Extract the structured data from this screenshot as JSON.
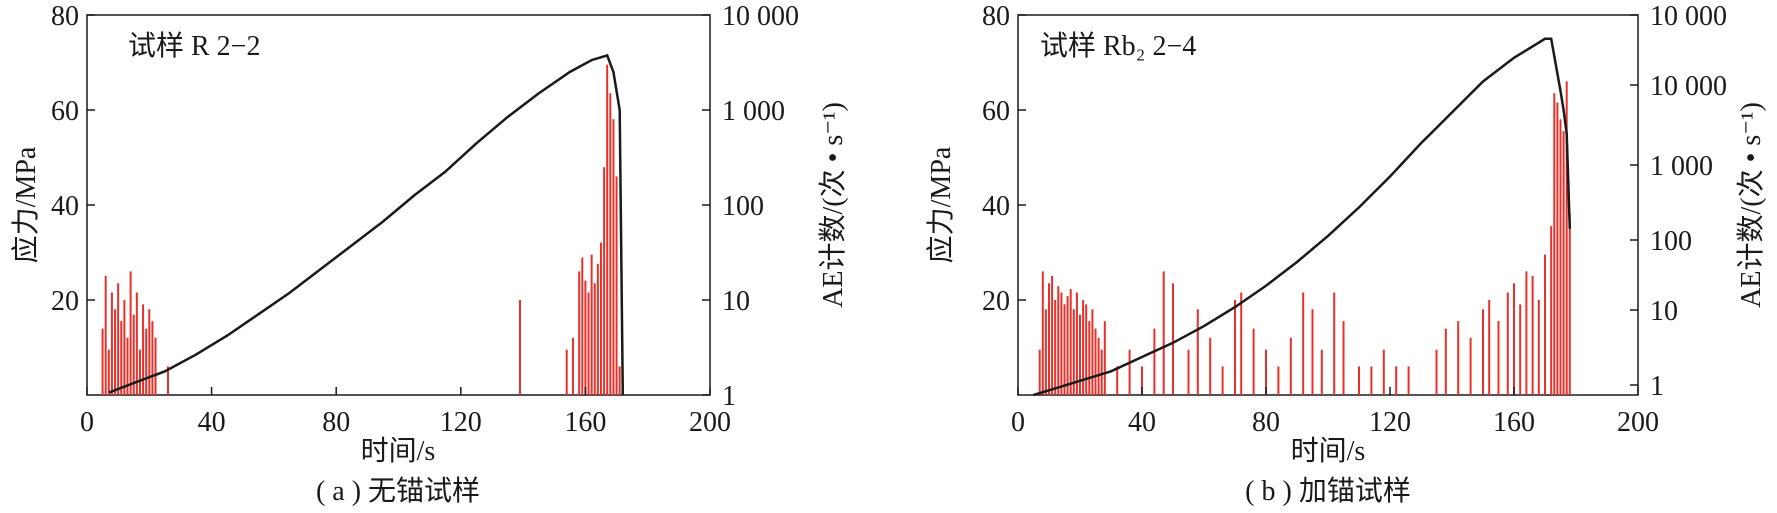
{
  "colors": {
    "stress": "#1a1a1a",
    "ae": "#e8312a",
    "axis": "#1a1a1a"
  },
  "chart_data": [
    {
      "type": "line",
      "panel_title": "( a ) 无锚试样",
      "annotation": "试样 R 2−2",
      "xlabel": "时间/s",
      "ylabel": "应力/MPa",
      "y2label": "AE计数/(次 • s⁻¹)",
      "xlim": [
        0,
        200
      ],
      "ylim": [
        0,
        80
      ],
      "y2lim_log": [
        1,
        10000
      ],
      "xticks": [
        "0",
        "40",
        "80",
        "120",
        "160",
        "200"
      ],
      "yticks": [
        "20",
        "40",
        "60",
        "80"
      ],
      "y2ticks": [
        "1",
        "10",
        "100",
        "1 000",
        "10 000"
      ],
      "series": [
        {
          "kind": "line",
          "axis": "left",
          "x": [
            7,
            15,
            25,
            35,
            45,
            55,
            65,
            75,
            85,
            95,
            105,
            115,
            125,
            135,
            145,
            155,
            162,
            167,
            169,
            171,
            172
          ],
          "y": [
            0.5,
            2.5,
            5,
            8.5,
            12.5,
            17,
            21.5,
            26.5,
            31.5,
            36.5,
            42,
            47,
            53,
            58.5,
            63.5,
            68,
            70.5,
            71.5,
            68,
            60,
            0
          ]
        },
        {
          "kind": "bars",
          "axis": "right",
          "x": [
            5,
            6,
            7,
            8,
            9,
            10,
            11,
            12,
            13,
            14,
            15,
            16,
            17,
            18,
            19,
            20,
            21,
            22,
            26,
            139,
            154,
            156,
            158,
            159,
            160,
            161,
            162,
            163,
            164,
            165,
            166,
            167,
            168,
            169,
            170,
            171
          ],
          "values": [
            5,
            18,
            3,
            12,
            8,
            15,
            6,
            10,
            4,
            20,
            7,
            12,
            3,
            9,
            5,
            8,
            6,
            4,
            2,
            10,
            3,
            4,
            20,
            28,
            16,
            12,
            30,
            15,
            24,
            40,
            250,
            3000,
            1500,
            800,
            200,
            2
          ]
        }
      ]
    },
    {
      "type": "line",
      "panel_title": "( b ) 加锚试样",
      "annotation": "试样 Rb₂ 2−4",
      "xlabel": "时间/s",
      "ylabel": "应力/MPa",
      "y2label": "AE计数/(次 • s⁻¹)",
      "xlim": [
        0,
        200
      ],
      "ylim": [
        0,
        80
      ],
      "y2lim_log": [
        1,
        10000
      ],
      "xticks": [
        "0",
        "40",
        "80",
        "120",
        "160",
        "200"
      ],
      "yticks": [
        "20",
        "40",
        "60",
        "80"
      ],
      "y2ticks": [
        "1",
        "10",
        "100",
        "1 000",
        "10 000",
        "10 000"
      ],
      "series": [
        {
          "kind": "line",
          "axis": "left",
          "x": [
            5,
            10,
            20,
            30,
            40,
            50,
            60,
            70,
            80,
            90,
            100,
            110,
            120,
            130,
            140,
            150,
            160,
            165,
            170,
            172,
            175,
            176,
            177,
            178
          ],
          "y": [
            0,
            1,
            3,
            5,
            8,
            11,
            14.5,
            18.5,
            23,
            28,
            33.5,
            39.5,
            46,
            53,
            59.5,
            66,
            71,
            73,
            75,
            75,
            64,
            60,
            55,
            35
          ]
        },
        {
          "kind": "bars",
          "axis": "right",
          "x": [
            7,
            8,
            9,
            10,
            11,
            12,
            13,
            14,
            15,
            16,
            17,
            18,
            19,
            20,
            21,
            22,
            23,
            24,
            25,
            26,
            27,
            28,
            32,
            36,
            40,
            44,
            47,
            50,
            55,
            58,
            62,
            66,
            70,
            72,
            76,
            80,
            84,
            88,
            92,
            95,
            98,
            102,
            105,
            110,
            114,
            118,
            122,
            126,
            135,
            138,
            142,
            146,
            150,
            152,
            155,
            158,
            160,
            162,
            164,
            166,
            168,
            170,
            172,
            173,
            174,
            175,
            176,
            177,
            178
          ],
          "values": [
            3,
            20,
            8,
            15,
            18,
            10,
            14,
            12,
            9,
            11,
            13,
            8,
            12,
            7,
            10,
            9,
            6,
            8,
            5,
            4,
            3,
            6,
            2,
            3,
            2,
            5,
            20,
            15,
            3,
            8,
            4,
            2,
            10,
            12,
            5,
            3,
            2,
            4,
            12,
            8,
            3,
            12,
            6,
            2,
            2,
            3,
            2,
            2,
            3,
            5,
            6,
            4,
            8,
            10,
            6,
            12,
            15,
            9,
            20,
            18,
            10,
            30,
            60,
            1500,
            1200,
            800,
            600,
            2000,
            80
          ]
        }
      ]
    }
  ]
}
